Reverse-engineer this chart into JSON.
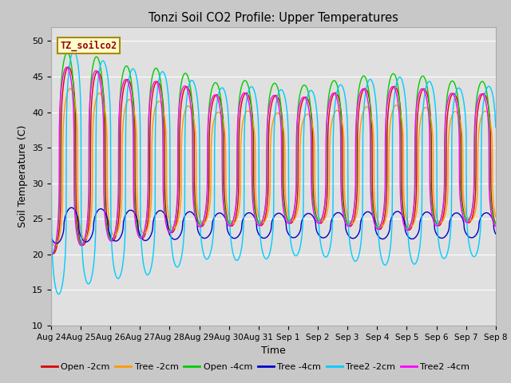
{
  "title": "Tonzi Soil CO2 Profile: Upper Temperatures",
  "xlabel": "Time",
  "ylabel": "Soil Temperature (C)",
  "ylim": [
    10,
    52
  ],
  "yticks": [
    10,
    15,
    20,
    25,
    30,
    35,
    40,
    45,
    50
  ],
  "fig_bg_color": "#c8c8c8",
  "plot_bg_color": "#e0e0e0",
  "legend_label": "TZ_soilco2",
  "series": [
    {
      "label": "Open -2cm",
      "color": "#dd0000"
    },
    {
      "label": "Tree -2cm",
      "color": "#ff9900"
    },
    {
      "label": "Open -4cm",
      "color": "#00cc00"
    },
    {
      "label": "Tree -4cm",
      "color": "#0000cc"
    },
    {
      "label": "Tree2 -2cm",
      "color": "#00ccff"
    },
    {
      "label": "Tree2 -4cm",
      "color": "#ff00ff"
    }
  ],
  "n_days": 15,
  "ticklabels": [
    "Aug 24",
    "Aug 25",
    "Aug 26",
    "Aug 27",
    "Aug 28",
    "Aug 29",
    "Aug 30",
    "Aug 31",
    "Sep 1",
    "Sep 2",
    "Sep 3",
    "Sep 4",
    "Sep 5",
    "Sep 6",
    "Sep 7",
    "Sep 8"
  ],
  "series_params": [
    {
      "mean": 33,
      "amp": 13,
      "phase": 0.0,
      "sharpness": 3.5
    },
    {
      "mean": 32,
      "amp": 11,
      "phase": 0.06,
      "sharpness": 3.5
    },
    {
      "mean": 34,
      "amp": 14,
      "phase": -0.04,
      "sharpness": 3.5
    },
    {
      "mean": 24,
      "amp": 2.5,
      "phase": 0.1,
      "sharpness": 2.0
    },
    {
      "mean": 31,
      "amp": 17,
      "phase": 0.18,
      "sharpness": 4.0
    },
    {
      "mean": 33,
      "amp": 13,
      "phase": -0.06,
      "sharpness": 3.5
    }
  ],
  "amp_envelope_peaks": [
    1.0,
    1.05,
    0.9,
    0.88,
    0.85,
    0.72,
    0.75,
    0.72,
    0.7,
    0.75,
    0.8,
    0.82,
    0.78,
    0.72,
    0.75
  ],
  "amp_envelope_troughs": [
    1.0,
    0.9,
    0.85,
    0.82,
    0.75,
    0.68,
    0.7,
    0.68,
    0.65,
    0.68,
    0.72,
    0.75,
    0.7,
    0.65,
    0.7
  ]
}
